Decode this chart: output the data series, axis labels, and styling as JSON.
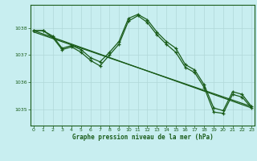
{
  "title": "Graphe pression niveau de la mer (hPa)",
  "bg_color": "#c8eef0",
  "grid_color": "#b0d8d8",
  "line_color": "#1a5c1a",
  "x_ticks": [
    0,
    1,
    2,
    3,
    4,
    5,
    6,
    7,
    8,
    9,
    10,
    11,
    12,
    13,
    14,
    15,
    16,
    17,
    18,
    19,
    20,
    21,
    22,
    23
  ],
  "y_ticks": [
    1035,
    1036,
    1037,
    1038
  ],
  "ylim": [
    1034.4,
    1038.85
  ],
  "xlim": [
    -0.3,
    23.3
  ],
  "line1_x": [
    0,
    1,
    2,
    3,
    4,
    5,
    6,
    7,
    8,
    9,
    10,
    11,
    12,
    13,
    14,
    15,
    16,
    17,
    18,
    19,
    20,
    21,
    22,
    23
  ],
  "line1_y": [
    1037.9,
    1037.9,
    1037.7,
    1037.25,
    1037.35,
    1037.2,
    1036.9,
    1036.75,
    1037.1,
    1037.5,
    1038.35,
    1038.5,
    1038.3,
    1037.85,
    1037.5,
    1037.25,
    1036.65,
    1036.45,
    1035.9,
    1035.05,
    1034.95,
    1035.65,
    1035.55,
    1035.1
  ],
  "line2_x": [
    0,
    1,
    2,
    3,
    4,
    5,
    6,
    7,
    8,
    9,
    10,
    11,
    12,
    13,
    14,
    15,
    16,
    17,
    18,
    19,
    20,
    21,
    22,
    23
  ],
  "line2_y": [
    1037.9,
    1037.9,
    1037.65,
    1037.2,
    1037.3,
    1037.1,
    1036.8,
    1036.6,
    1037.0,
    1037.4,
    1038.25,
    1038.45,
    1038.2,
    1037.75,
    1037.4,
    1037.1,
    1036.55,
    1036.35,
    1035.8,
    1034.9,
    1034.85,
    1035.55,
    1035.45,
    1035.05
  ],
  "line3_x": [
    0,
    23
  ],
  "line3_y": [
    1037.9,
    1035.05
  ],
  "line4_x": [
    0,
    23
  ],
  "line4_y": [
    1037.85,
    1035.1
  ]
}
